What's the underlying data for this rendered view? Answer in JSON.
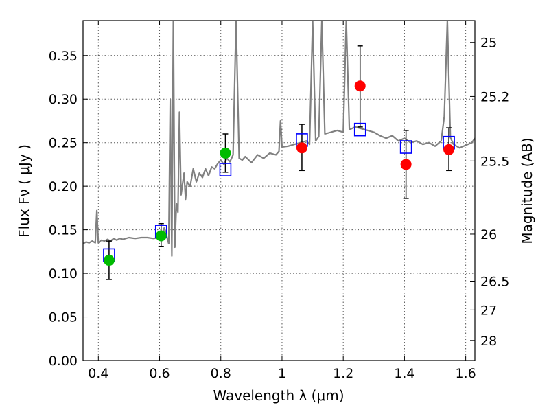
{
  "chart_data": {
    "type": "scatter",
    "title": "",
    "xlabel": "Wavelength  λ (μm)",
    "ylabel": "Flux  Fν  ( μJy )",
    "y2label": "Magnitude (AB)",
    "xlim": [
      0.35,
      1.63
    ],
    "ylim": [
      0.0,
      0.39
    ],
    "grid": true,
    "x_ticks": [
      0.4,
      0.6,
      0.8,
      1.0,
      1.2,
      1.4,
      1.6
    ],
    "x_tick_labels": [
      "0.4",
      "0.6",
      "0.8",
      "1",
      "1.2",
      "1.4",
      "1.6"
    ],
    "y_ticks": [
      0.0,
      0.05,
      0.1,
      0.15,
      0.2,
      0.25,
      0.3,
      0.35
    ],
    "y_tick_labels": [
      "0.00",
      "0.05",
      "0.10",
      "0.15",
      "0.20",
      "0.25",
      "0.30",
      "0.35"
    ],
    "y2_ticks": [
      {
        "label": "25",
        "flux": 0.365
      },
      {
        "label": "25.2",
        "flux": 0.303
      },
      {
        "label": "25.5",
        "flux": 0.229
      },
      {
        "label": "26",
        "flux": 0.145
      },
      {
        "label": "26.5",
        "flux": 0.091
      },
      {
        "label": "27",
        "flux": 0.058
      },
      {
        "label": "28",
        "flux": 0.023
      }
    ],
    "colors": {
      "model": "#808080",
      "green_points": "#00bb00",
      "red_points": "#ff0000",
      "squares": "#0000ff",
      "errorbars": "#000000",
      "grid": "#555555"
    },
    "series": [
      {
        "kind": "line",
        "points": [
          [
            0.35,
            0.134
          ],
          [
            0.36,
            0.136
          ],
          [
            0.37,
            0.135
          ],
          [
            0.38,
            0.137
          ],
          [
            0.39,
            0.135
          ],
          [
            0.395,
            0.172
          ],
          [
            0.4,
            0.135
          ],
          [
            0.41,
            0.138
          ],
          [
            0.42,
            0.137
          ],
          [
            0.43,
            0.139
          ],
          [
            0.44,
            0.137
          ],
          [
            0.45,
            0.14
          ],
          [
            0.46,
            0.138
          ],
          [
            0.47,
            0.14
          ],
          [
            0.48,
            0.139
          ],
          [
            0.5,
            0.141
          ],
          [
            0.52,
            0.14
          ],
          [
            0.54,
            0.141
          ],
          [
            0.56,
            0.141
          ],
          [
            0.58,
            0.14
          ],
          [
            0.6,
            0.141
          ],
          [
            0.605,
            0.138
          ],
          [
            0.61,
            0.146
          ],
          [
            0.615,
            0.152
          ],
          [
            0.62,
            0.148
          ],
          [
            0.625,
            0.14
          ],
          [
            0.63,
            0.134
          ],
          [
            0.635,
            0.3
          ],
          [
            0.64,
            0.12
          ],
          [
            0.645,
            0.39
          ],
          [
            0.65,
            0.13
          ],
          [
            0.655,
            0.18
          ],
          [
            0.66,
            0.17
          ],
          [
            0.665,
            0.285
          ],
          [
            0.67,
            0.19
          ],
          [
            0.68,
            0.215
          ],
          [
            0.685,
            0.185
          ],
          [
            0.69,
            0.205
          ],
          [
            0.7,
            0.2
          ],
          [
            0.71,
            0.22
          ],
          [
            0.72,
            0.205
          ],
          [
            0.73,
            0.215
          ],
          [
            0.74,
            0.21
          ],
          [
            0.75,
            0.22
          ],
          [
            0.76,
            0.212
          ],
          [
            0.77,
            0.222
          ],
          [
            0.78,
            0.22
          ],
          [
            0.79,
            0.226
          ],
          [
            0.8,
            0.23
          ],
          [
            0.81,
            0.225
          ],
          [
            0.82,
            0.232
          ],
          [
            0.83,
            0.228
          ],
          [
            0.84,
            0.236
          ],
          [
            0.85,
            0.39
          ],
          [
            0.86,
            0.232
          ],
          [
            0.87,
            0.23
          ],
          [
            0.88,
            0.234
          ],
          [
            0.9,
            0.227
          ],
          [
            0.92,
            0.236
          ],
          [
            0.94,
            0.232
          ],
          [
            0.96,
            0.238
          ],
          [
            0.98,
            0.236
          ],
          [
            0.99,
            0.24
          ],
          [
            0.995,
            0.275
          ],
          [
            1.0,
            0.245
          ],
          [
            1.02,
            0.246
          ],
          [
            1.04,
            0.248
          ],
          [
            1.06,
            0.25
          ],
          [
            1.08,
            0.252
          ],
          [
            1.09,
            0.248
          ],
          [
            1.1,
            0.39
          ],
          [
            1.11,
            0.252
          ],
          [
            1.12,
            0.257
          ],
          [
            1.13,
            0.39
          ],
          [
            1.14,
            0.26
          ],
          [
            1.16,
            0.262
          ],
          [
            1.18,
            0.264
          ],
          [
            1.2,
            0.262
          ],
          [
            1.21,
            0.39
          ],
          [
            1.22,
            0.265
          ],
          [
            1.24,
            0.268
          ],
          [
            1.26,
            0.266
          ],
          [
            1.28,
            0.264
          ],
          [
            1.3,
            0.262
          ],
          [
            1.32,
            0.258
          ],
          [
            1.34,
            0.255
          ],
          [
            1.36,
            0.258
          ],
          [
            1.38,
            0.252
          ],
          [
            1.4,
            0.255
          ],
          [
            1.42,
            0.25
          ],
          [
            1.44,
            0.252
          ],
          [
            1.46,
            0.248
          ],
          [
            1.48,
            0.25
          ],
          [
            1.5,
            0.246
          ],
          [
            1.52,
            0.252
          ],
          [
            1.53,
            0.28
          ],
          [
            1.54,
            0.39
          ],
          [
            1.55,
            0.256
          ],
          [
            1.56,
            0.248
          ],
          [
            1.58,
            0.244
          ],
          [
            1.6,
            0.247
          ],
          [
            1.62,
            0.25
          ],
          [
            1.63,
            0.255
          ]
        ]
      },
      {
        "kind": "squares",
        "points": [
          [
            0.435,
            0.121
          ],
          [
            0.605,
            0.148
          ],
          [
            0.815,
            0.219
          ],
          [
            1.065,
            0.253
          ],
          [
            1.255,
            0.265
          ],
          [
            1.405,
            0.245
          ],
          [
            1.545,
            0.25
          ]
        ]
      },
      {
        "kind": "green-circles",
        "points": [
          [
            0.435,
            0.115
          ],
          [
            0.605,
            0.143
          ],
          [
            0.815,
            0.238
          ]
        ],
        "yerr": [
          [
            0.093,
            0.137
          ],
          [
            0.131,
            0.157
          ],
          [
            0.216,
            0.26
          ]
        ]
      },
      {
        "kind": "red-circles",
        "points": [
          [
            1.065,
            0.244
          ],
          [
            1.255,
            0.315
          ],
          [
            1.405,
            0.225
          ],
          [
            1.545,
            0.242
          ]
        ],
        "yerr": [
          [
            0.218,
            0.271
          ],
          [
            0.268,
            0.361
          ],
          [
            0.186,
            0.264
          ],
          [
            0.218,
            0.267
          ]
        ]
      }
    ]
  }
}
